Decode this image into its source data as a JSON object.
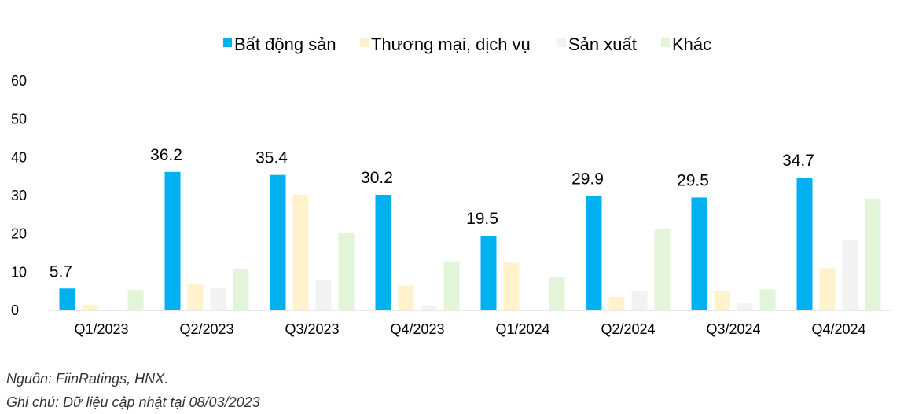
{
  "chart_data": {
    "type": "bar",
    "categories": [
      "Q1/2023",
      "Q2/2023",
      "Q3/2023",
      "Q4/2023",
      "Q1/2024",
      "Q2/2024",
      "Q3/2024",
      "Q4/2024"
    ],
    "series": [
      {
        "name": "Bất động sản",
        "color": "#00b0f0",
        "values": [
          5.7,
          36.2,
          35.4,
          30.2,
          19.5,
          29.9,
          29.5,
          34.7
        ],
        "labels": [
          "5.7",
          "36.2",
          "35.4",
          "30.2",
          "19.5",
          "29.9",
          "29.5",
          "34.7"
        ]
      },
      {
        "name": "Thương mại, dịch vụ",
        "color": "#fff2cc",
        "values": [
          1.5,
          7.0,
          30.2,
          6.5,
          12.5,
          3.5,
          5.0,
          11.0
        ]
      },
      {
        "name": "Sản xuất",
        "color": "#f2f2f2",
        "values": [
          0,
          5.8,
          8.0,
          1.3,
          0,
          5.0,
          1.8,
          18.5
        ]
      },
      {
        "name": "Khác",
        "color": "#e2f5d8",
        "values": [
          5.3,
          10.7,
          20.2,
          12.8,
          8.8,
          21.2,
          5.5,
          29.2
        ]
      }
    ],
    "ylim": [
      0,
      60
    ],
    "yticks": [
      "0",
      "10",
      "20",
      "30",
      "40",
      "50",
      "60"
    ],
    "legend_position": "top",
    "grid": false
  },
  "notes": {
    "source": "Nguồn: FiinRatings, HNX.",
    "update": "Ghi chú: Dữ liệu cập nhật tại 08/03/2023"
  }
}
